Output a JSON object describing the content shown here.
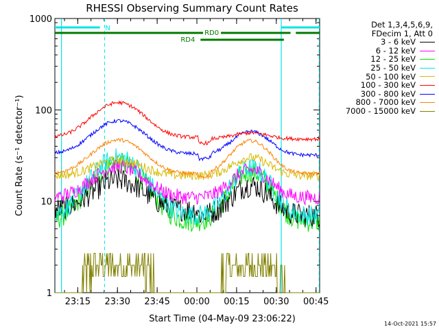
{
  "chart_data": {
    "type": "line",
    "title": "RHESSI Observing Summary Count Rates",
    "xlabel": "Start Time (04-May-09 23:06:22)",
    "ylabel": "Count Rate (s⁻¹ detector⁻¹)",
    "yscale": "log",
    "ylim": [
      1,
      1000
    ],
    "xlim_minutes": [
      0,
      100
    ],
    "x_ticks": [
      "23:15",
      "23:30",
      "23:45",
      "00:00",
      "00:15",
      "00:30",
      "00:45"
    ],
    "y_ticks": [
      "1",
      "10",
      "100",
      "1000"
    ],
    "legend_header": [
      "Det 1,3,4,5,6,9,",
      "FDecim 1, Att 0"
    ],
    "legend_placement": "right",
    "flags": [
      {
        "label": "N",
        "color": "#00e5e5"
      },
      {
        "label": "RD0",
        "color": "#007a00"
      },
      {
        "label": "RD4",
        "color": "#007a00"
      }
    ],
    "series": [
      {
        "name": "3 - 6 keV",
        "color": "#000000",
        "base1": 8,
        "peak1": 17,
        "base2": 7,
        "peak2": 15,
        "noise": 0.13
      },
      {
        "name": "6 - 12 keV",
        "color": "#ff00ff",
        "base1": 11,
        "peak1": 24,
        "base2": 11,
        "peak2": 22,
        "noise": 0.08
      },
      {
        "name": "12 - 25 keV",
        "color": "#00e000",
        "base1": 6,
        "peak1": 26,
        "base2": 6,
        "peak2": 21,
        "noise": 0.12
      },
      {
        "name": "25 - 50 keV",
        "color": "#00e5e5",
        "base1": 7,
        "peak1": 30,
        "base2": 7,
        "peak2": 23,
        "noise": 0.11
      },
      {
        "name": "50 - 100 keV",
        "color": "#d8b800",
        "base1": 19,
        "peak1": 28,
        "base2": 19,
        "peak2": 30,
        "noise": 0.05
      },
      {
        "name": "100 - 300 keV",
        "color": "#ff0000",
        "base1": 50,
        "peak1": 120,
        "base2": 48,
        "peak2": 56,
        "noise": 0.02
      },
      {
        "name": "300 - 800 keV",
        "color": "#0000ff",
        "base1": 33,
        "peak1": 76,
        "base2": 32,
        "peak2": 58,
        "noise": 0.02
      },
      {
        "name": "800 - 7000 keV",
        "color": "#ff8000",
        "base1": 20,
        "peak1": 47,
        "base2": 20,
        "peak2": 46,
        "noise": 0.02
      },
      {
        "name": "7000 - 15000 keV",
        "color": "#808000",
        "base1": 1,
        "peak1": 2.7,
        "base2": 1,
        "peak2": 2.7,
        "noise": 0.0
      }
    ]
  },
  "timestamp": "14-Oct-2021 15:57"
}
